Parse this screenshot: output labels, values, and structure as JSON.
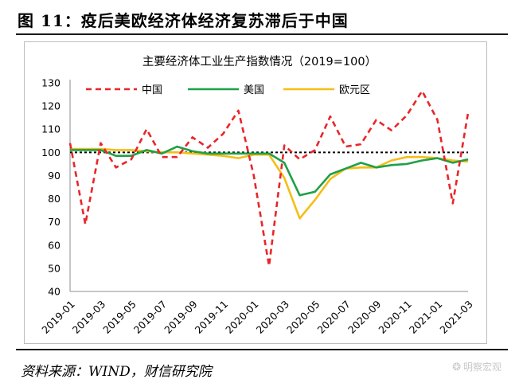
{
  "figure": {
    "title": "图 11：疫后美欧经济体经济复苏滞后于中国",
    "source": "资料来源：WIND，财信研究院",
    "watermark": "明察宏观"
  },
  "chart_data": {
    "type": "line",
    "title": "主要经济体工业生产指数情况（2019=100）",
    "x": [
      "2019-01",
      "2019-02",
      "2019-03",
      "2019-04",
      "2019-05",
      "2019-06",
      "2019-07",
      "2019-08",
      "2019-09",
      "2019-10",
      "2019-11",
      "2019-12",
      "2020-01",
      "2020-02",
      "2020-03",
      "2020-04",
      "2020-05",
      "2020-06",
      "2020-07",
      "2020-08",
      "2020-09",
      "2020-10",
      "2020-11",
      "2020-12",
      "2021-01",
      "2021-02",
      "2021-03"
    ],
    "x_tick_labels": [
      "2019-01",
      "2019-03",
      "2019-05",
      "2019-07",
      "2019-09",
      "2019-11",
      "2020-01",
      "2020-03",
      "2020-05",
      "2020-07",
      "2020-09",
      "2020-11",
      "2021-01",
      "2021-03"
    ],
    "ylim": [
      40,
      130
    ],
    "y_ticks": [
      40,
      50,
      60,
      70,
      80,
      90,
      100,
      110,
      120,
      130
    ],
    "reference_line": 100,
    "legend_position": "top",
    "series": [
      {
        "name": "中国",
        "color": "#e8262a",
        "style": "dashed",
        "values": [
          104,
          69,
          104,
          93.5,
          97,
          110,
          98,
          98,
          106.5,
          102,
          108,
          118,
          90,
          51,
          103,
          97,
          101,
          115.5,
          102.5,
          103.5,
          114,
          109.5,
          116,
          126.5,
          114,
          78,
          117
        ]
      },
      {
        "name": "美国",
        "color": "#1fa048",
        "style": "solid",
        "values": [
          101,
          101,
          101,
          98.5,
          98.5,
          101,
          99.5,
          102.5,
          100.5,
          99.5,
          99.5,
          99.5,
          99.5,
          99.5,
          95.5,
          81.5,
          83,
          90.5,
          93,
          95.5,
          93.5,
          94.5,
          95,
          96.5,
          97.5,
          95.5,
          97
        ]
      },
      {
        "name": "欧元区",
        "color": "#f6bd16",
        "style": "solid",
        "values": [
          101.5,
          101.5,
          101.5,
          101,
          101,
          100.5,
          100,
          100,
          99.5,
          99,
          98.5,
          97.5,
          99,
          99,
          89,
          71.5,
          79.5,
          88.5,
          93,
          93.5,
          93.5,
          96.5,
          98,
          98,
          97.5,
          96.5,
          96
        ]
      }
    ]
  }
}
